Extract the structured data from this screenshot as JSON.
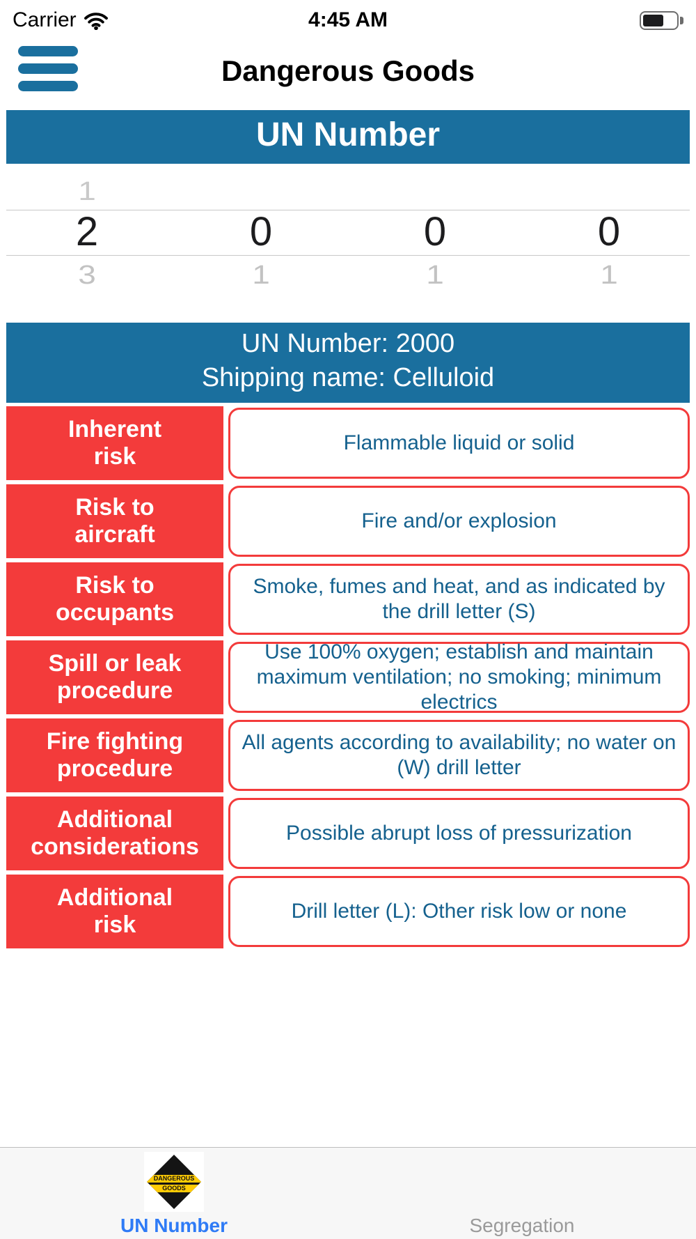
{
  "status_bar": {
    "carrier": "Carrier",
    "time": "4:45 AM"
  },
  "nav": {
    "title": "Dangerous Goods"
  },
  "un_banner": {
    "title": "UN Number"
  },
  "picker": {
    "columns": [
      {
        "above": "1",
        "selected": "2",
        "below": "3"
      },
      {
        "above": "",
        "selected": "0",
        "below": "1"
      },
      {
        "above": "",
        "selected": "0",
        "below": "1"
      },
      {
        "above": "",
        "selected": "0",
        "below": "1"
      }
    ],
    "selected_value": "2000"
  },
  "result": {
    "line1": "UN Number: 2000",
    "line2": "Shipping name: Celluloid"
  },
  "details": [
    {
      "label_lines": [
        "Inherent",
        "risk"
      ],
      "value": "Flammable liquid or solid"
    },
    {
      "label_lines": [
        "Risk to",
        "aircraft"
      ],
      "value": "Fire and/or explosion"
    },
    {
      "label_lines": [
        "Risk to",
        "occupants"
      ],
      "value": "Smoke, fumes and heat, and as indicated by the drill letter (S)"
    },
    {
      "label_lines": [
        "Spill or leak",
        "procedure"
      ],
      "value": "Use 100% oxygen; establish and maintain maximum ventilation; no smoking; minimum electrics"
    },
    {
      "label_lines": [
        "Fire fighting",
        "procedure"
      ],
      "value": "All agents according to availability; no water on (W) drill letter"
    },
    {
      "label_lines": [
        "Additional",
        "considerations"
      ],
      "value": "Possible abrupt loss of pressurization"
    },
    {
      "label_lines": [
        "Additional",
        "risk"
      ],
      "value": "Drill letter (L): Other risk low or none"
    }
  ],
  "tab_bar": {
    "tabs": [
      {
        "label": "UN Number",
        "active": true,
        "icon": "dangerous-goods-placard-icon",
        "icon_text": [
          "DANGEROUS",
          "GOODS"
        ]
      },
      {
        "label": "Segregation",
        "active": false
      }
    ]
  },
  "colors": {
    "accent_blue": "#1a6f9e",
    "alert_red": "#f33b3b",
    "value_text_blue": "#15618e",
    "active_tab_blue": "#2f7bf6",
    "inactive_tab_gray": "#9a9a9a"
  }
}
